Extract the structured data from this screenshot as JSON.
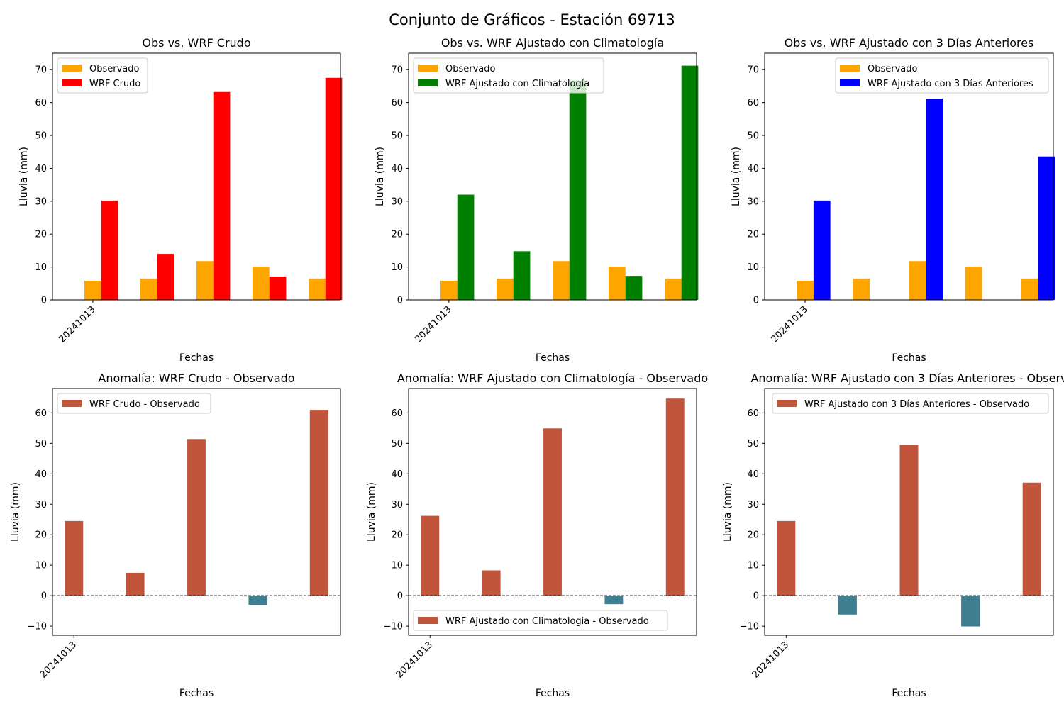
{
  "figure_title": "Conjunto de Gráficos - Estación 69713",
  "colors": {
    "observado": "#ffa500",
    "wrf_crudo": "#ff0000",
    "wrf_clim": "#008000",
    "wrf_3dias": "#0000ff",
    "anom_pos": "#c1553b",
    "anom_neg": "#3d7f91"
  },
  "chart_data": [
    {
      "type": "bar",
      "title": "Obs vs. WRF Crudo",
      "xlabel": "Fechas",
      "ylabel": "Lluvia (mm)",
      "categories": [
        "20241013",
        "",
        "",
        "",
        ""
      ],
      "ylim": [
        0,
        75
      ],
      "yticks": [
        0,
        10,
        20,
        30,
        40,
        50,
        60,
        70
      ],
      "legend_position": "upper-left",
      "series": [
        {
          "name": "Observado",
          "color": "#ffa500",
          "values": [
            5.8,
            6.5,
            11.8,
            10.1,
            6.5
          ]
        },
        {
          "name": "WRF Crudo",
          "color": "#ff0000",
          "values": [
            30.2,
            14.0,
            63.2,
            7.1,
            67.5
          ]
        }
      ]
    },
    {
      "type": "bar",
      "title": "Obs vs. WRF Ajustado con Climatología",
      "xlabel": "Fechas",
      "ylabel": "Lluvia (mm)",
      "categories": [
        "20241013",
        "",
        "",
        "",
        ""
      ],
      "ylim": [
        0,
        75
      ],
      "yticks": [
        0,
        10,
        20,
        30,
        40,
        50,
        60,
        70
      ],
      "legend_position": "upper-left",
      "series": [
        {
          "name": "Observado",
          "color": "#ffa500",
          "values": [
            5.8,
            6.5,
            11.8,
            10.1,
            6.5
          ]
        },
        {
          "name": "WRF Ajustado con Climatología",
          "color": "#008000",
          "values": [
            32.0,
            14.8,
            66.7,
            7.3,
            71.2
          ]
        }
      ]
    },
    {
      "type": "bar",
      "title": "Obs vs. WRF Ajustado con 3 Días Anteriores",
      "xlabel": "Fechas",
      "ylabel": "Lluvia (mm)",
      "categories": [
        "20241013",
        "",
        "",
        "",
        ""
      ],
      "ylim": [
        0,
        75
      ],
      "yticks": [
        0,
        10,
        20,
        30,
        40,
        50,
        60,
        70
      ],
      "legend_position": "upper-right",
      "series": [
        {
          "name": "Observado",
          "color": "#ffa500",
          "values": [
            5.8,
            6.5,
            11.8,
            10.1,
            6.5
          ]
        },
        {
          "name": "WRF Ajustado con 3 Días Anteriores",
          "color": "#0000ff",
          "values": [
            30.2,
            0,
            61.2,
            0,
            43.6
          ]
        }
      ]
    },
    {
      "type": "bar",
      "title": "Anomalía: WRF Crudo - Observado",
      "xlabel": "Fechas",
      "ylabel": "Lluvia (mm)",
      "categories": [
        "20241013",
        "",
        "",
        "",
        ""
      ],
      "ylim": [
        -13,
        68
      ],
      "yticks": [
        -10,
        0,
        10,
        20,
        30,
        40,
        50,
        60
      ],
      "legend_position": "upper-left",
      "zero_line": true,
      "series": [
        {
          "name": "WRF Crudo - Observado",
          "values": [
            24.5,
            7.5,
            51.4,
            -3.0,
            61.0
          ]
        }
      ]
    },
    {
      "type": "bar",
      "title": "Anomalía: WRF Ajustado con Climatología - Observado",
      "xlabel": "Fechas",
      "ylabel": "Lluvia (mm)",
      "categories": [
        "20241013",
        "",
        "",
        "",
        ""
      ],
      "ylim": [
        -13,
        68
      ],
      "yticks": [
        -10,
        0,
        10,
        20,
        30,
        40,
        50,
        60
      ],
      "legend_position": "lower-left",
      "zero_line": true,
      "series": [
        {
          "name": "WRF Ajustado con Climatologia - Observado",
          "values": [
            26.2,
            8.3,
            54.9,
            -2.8,
            64.7
          ]
        }
      ]
    },
    {
      "type": "bar",
      "title": "Anomalía: WRF Ajustado con 3 Días Anteriores - Observ",
      "xlabel": "Fechas",
      "ylabel": "Lluvia (mm)",
      "categories": [
        "20241013",
        "",
        "",
        "",
        ""
      ],
      "ylim": [
        -13,
        68
      ],
      "yticks": [
        -10,
        0,
        10,
        20,
        30,
        40,
        50,
        60
      ],
      "legend_position": "upper-right",
      "zero_line": true,
      "series": [
        {
          "name": "WRF Ajustado con 3 Días Anteriores - Observado",
          "values": [
            24.5,
            -6.2,
            49.5,
            -10.1,
            37.1
          ]
        }
      ]
    }
  ]
}
